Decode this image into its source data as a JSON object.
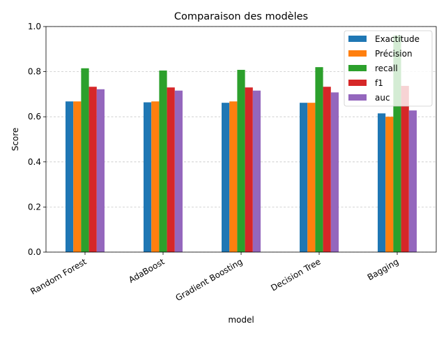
{
  "chart_data": {
    "type": "bar",
    "title": "Comparaison des modèles",
    "xlabel": "model",
    "ylabel": "Score",
    "ylim": [
      0,
      1.0
    ],
    "yticks": [
      "0.0",
      "0.2",
      "0.4",
      "0.6",
      "0.8",
      "1.0"
    ],
    "grid": "y-dashed",
    "legend_position": "top-right",
    "categories": [
      "Random Forest",
      "AdaBoost",
      "Gradient Boosting",
      "Decision Tree",
      "Bagging"
    ],
    "series": [
      {
        "name": "Exactitude",
        "color": "#1f77b4",
        "values": [
          0.668,
          0.664,
          0.662,
          0.662,
          0.615
        ]
      },
      {
        "name": "Précision",
        "color": "#ff7f0e",
        "values": [
          0.668,
          0.668,
          0.668,
          0.662,
          0.6
        ]
      },
      {
        "name": "recall",
        "color": "#2ca02c",
        "values": [
          0.815,
          0.805,
          0.808,
          0.82,
          0.96
        ]
      },
      {
        "name": "f1",
        "color": "#d62728",
        "values": [
          0.733,
          0.73,
          0.73,
          0.733,
          0.737
        ]
      },
      {
        "name": "auc",
        "color": "#9467bd",
        "values": [
          0.722,
          0.716,
          0.716,
          0.708,
          0.628
        ]
      }
    ]
  }
}
